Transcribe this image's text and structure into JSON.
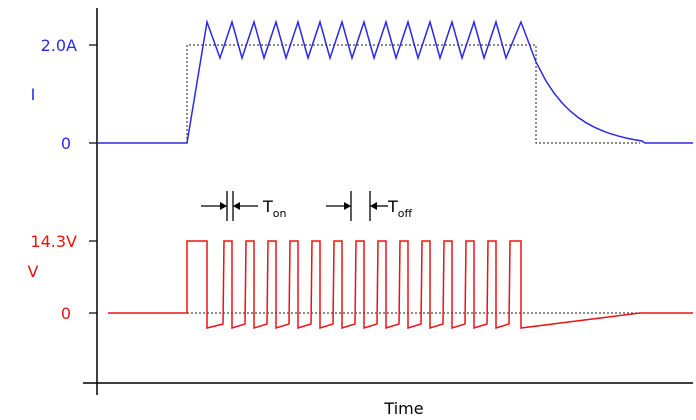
{
  "labels": {
    "current_max": "2.0A",
    "current_axis": "I",
    "current_zero": "0",
    "voltage_max": "14.3V",
    "voltage_axis": "V",
    "voltage_zero": "0",
    "time_axis": "Time",
    "t_on_main": "T",
    "t_on_sub": "on",
    "t_off_main": "T",
    "t_off_sub": "off"
  },
  "colors": {
    "current": "#2a2ae6",
    "voltage": "#ee1111",
    "axis": "#000000",
    "reference": "#444444"
  }
}
